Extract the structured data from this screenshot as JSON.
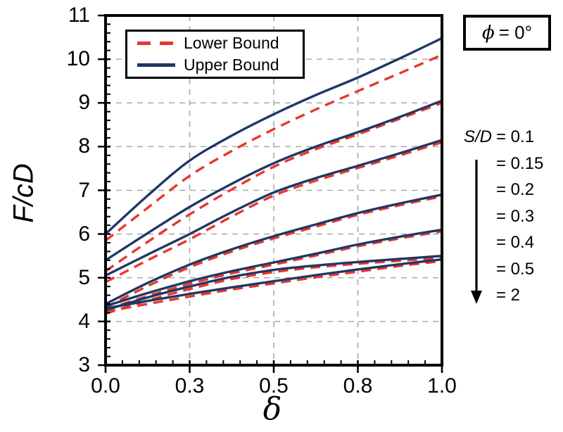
{
  "chart_data": {
    "type": "line",
    "title": "",
    "xlabel": "δ",
    "ylabel": "F/cD",
    "xlim": [
      0,
      1
    ],
    "ylim": [
      3,
      11
    ],
    "grid": "both-dashed",
    "legend_position": "top-left-inside",
    "x_axis": {
      "tick_values": [
        0,
        0.25,
        0.5,
        0.75,
        1.0
      ],
      "tick_labels": [
        "0.0",
        "0.3",
        "0.5",
        "0.8",
        "1.0"
      ],
      "minor_tick_step": 0.05
    },
    "y_axis": {
      "tick_values": [
        3,
        4,
        5,
        6,
        7,
        8,
        9,
        10,
        11
      ],
      "tick_labels": [
        "3",
        "4",
        "5",
        "6",
        "7",
        "8",
        "9",
        "10",
        "11"
      ],
      "minor_tick_step": 0.2
    },
    "gridlines": {
      "x_values": [
        0.25,
        0.5,
        0.75
      ],
      "y_values": [
        4,
        5,
        6,
        7,
        8,
        9,
        10
      ]
    },
    "x": [
      0,
      0.125,
      0.25,
      0.375,
      0.5,
      0.625,
      0.75,
      0.875,
      1.0
    ],
    "series": [
      {
        "name": "S/D = 0.1",
        "upper": [
          6.0,
          6.88,
          7.68,
          8.25,
          8.74,
          9.18,
          9.58,
          10.02,
          10.48
        ],
        "lower": [
          5.85,
          6.6,
          7.33,
          7.9,
          8.4,
          8.85,
          9.27,
          9.68,
          10.1
        ]
      },
      {
        "name": "S/D = 0.15",
        "upper": [
          5.4,
          6.02,
          6.62,
          7.15,
          7.62,
          8.0,
          8.33,
          8.68,
          9.05
        ],
        "lower": [
          5.15,
          5.82,
          6.45,
          7.02,
          7.54,
          7.94,
          8.28,
          8.64,
          9.0
        ]
      },
      {
        "name": "S/D = 0.2",
        "upper": [
          5.05,
          5.53,
          6.0,
          6.5,
          6.95,
          7.28,
          7.56,
          7.85,
          8.15
        ],
        "lower": [
          4.9,
          5.4,
          5.88,
          6.4,
          6.88,
          7.22,
          7.51,
          7.8,
          8.1
        ]
      },
      {
        "name": "S/D = 0.3",
        "upper": [
          4.4,
          4.88,
          5.3,
          5.65,
          5.95,
          6.22,
          6.48,
          6.7,
          6.9
        ],
        "lower": [
          4.32,
          4.81,
          5.24,
          5.6,
          5.9,
          6.17,
          6.44,
          6.66,
          6.86
        ]
      },
      {
        "name": "S/D = 0.4",
        "upper": [
          4.35,
          4.65,
          4.92,
          5.15,
          5.35,
          5.55,
          5.76,
          5.94,
          6.1
        ],
        "lower": [
          4.27,
          4.58,
          4.86,
          5.1,
          5.3,
          5.51,
          5.72,
          5.9,
          6.06
        ]
      },
      {
        "name": "S/D = 0.5",
        "upper": [
          4.3,
          4.47,
          4.63,
          4.78,
          4.92,
          5.06,
          5.19,
          5.31,
          5.42
        ],
        "lower": [
          4.22,
          4.4,
          4.57,
          4.73,
          4.87,
          5.01,
          5.14,
          5.27,
          5.38
        ]
      },
      {
        "name": "S/D = 2",
        "upper": [
          4.26,
          4.55,
          4.8,
          5.02,
          5.18,
          5.28,
          5.36,
          5.43,
          5.5
        ],
        "lower": [
          4.18,
          4.48,
          4.74,
          4.97,
          5.13,
          5.24,
          5.32,
          5.39,
          5.45
        ]
      }
    ],
    "legend": {
      "entries": [
        {
          "label": "Lower Bound",
          "style": "dashed",
          "color": "#e8372d"
        },
        {
          "label": "Upper Bound",
          "style": "solid",
          "color": "#1f3864"
        }
      ]
    },
    "colors": {
      "upper_bound": "#1f3864",
      "lower_bound": "#e8372d",
      "gridline": "#a9a9a9",
      "axis": "#000000"
    }
  },
  "axes_titles": {
    "y": "F/cD",
    "x": "δ"
  },
  "annotation_box": {
    "symbol": "ϕ",
    "text": "= 0°"
  },
  "side_labels": {
    "prefix": "S/D",
    "rows": [
      "= 0.1",
      "= 0.15",
      "= 0.2",
      "= 0.3",
      "= 0.4",
      "= 0.5",
      "= 2"
    ],
    "arrow": "down-arrow"
  }
}
